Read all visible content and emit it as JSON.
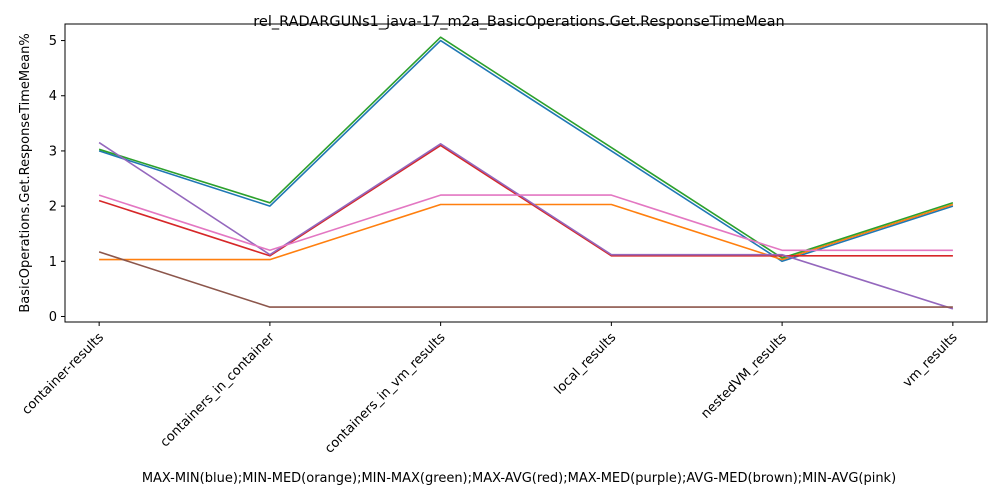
{
  "chart_data": {
    "type": "line",
    "title": "rel_RADARGUNs1_java-17_m2a_BasicOperations.Get.ResponseTimeMean",
    "xlabel": "MAX-MIN(blue);MIN-MED(orange);MIN-MAX(green);MAX-AVG(red);MAX-MED(purple);AVG-MED(brown);MIN-AVG(pink)",
    "ylabel": "BasicOperations.Get.ResponseTimeMean%",
    "categories": [
      "container-results",
      "containers_in_container",
      "containers_in_vm_results",
      "local_results",
      "nestedVM_results",
      "vm_results"
    ],
    "yticks": [
      "0",
      "1",
      "2",
      "3",
      "4",
      "5"
    ],
    "ylim": [
      -0.1,
      5.3
    ],
    "grid": false,
    "legend": "none",
    "series": [
      {
        "color": "#1f77b4",
        "values": [
          3.0,
          2.0,
          5.0,
          3.0,
          1.0,
          2.0
        ]
      },
      {
        "color": "#ff7f0e",
        "values": [
          1.03,
          1.03,
          2.03,
          2.03,
          1.03,
          2.03
        ]
      },
      {
        "color": "#2ca02c",
        "values": [
          3.03,
          2.06,
          5.06,
          3.06,
          1.06,
          2.06
        ]
      },
      {
        "color": "#d62728",
        "values": [
          2.1,
          1.1,
          3.1,
          1.1,
          1.1,
          1.1
        ]
      },
      {
        "color": "#9467bd",
        "values": [
          3.15,
          1.12,
          3.13,
          1.12,
          1.12,
          0.14
        ]
      },
      {
        "color": "#8c564b",
        "values": [
          1.17,
          0.17,
          0.17,
          0.17,
          0.17,
          0.17
        ]
      },
      {
        "color": "#e377c2",
        "values": [
          2.2,
          1.2,
          2.2,
          2.2,
          1.2,
          1.2
        ]
      }
    ]
  }
}
